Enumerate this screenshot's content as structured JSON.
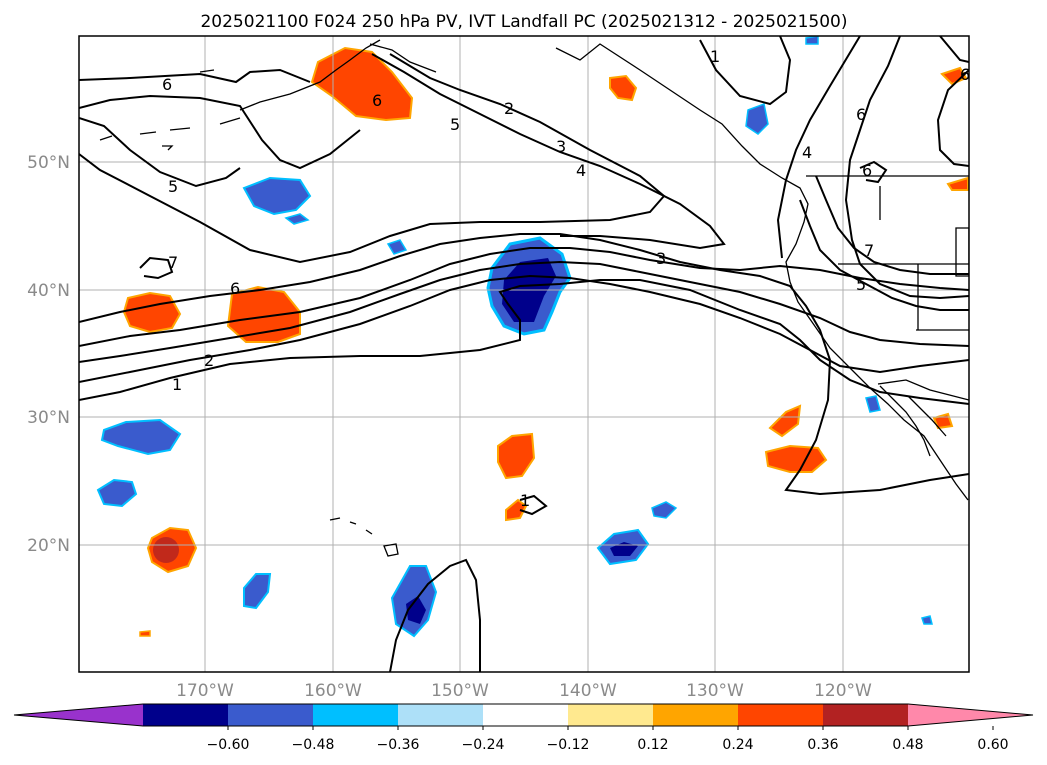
{
  "title": "2025021100 F024 250 hPa PV, IVT Landfall PC (2025021312 - 2025021500)",
  "lat_labels": [
    "50°N",
    "40°N",
    "30°N",
    "20°N"
  ],
  "lon_labels": [
    "170°W",
    "160°W",
    "150°W",
    "140°W",
    "130°W",
    "120°W"
  ],
  "contour_labels": [
    "6",
    "6",
    "5",
    "2",
    "3",
    "4",
    "5",
    "6",
    "7",
    "6",
    "3",
    "2",
    "1",
    "1",
    "1",
    "4",
    "6",
    "6",
    "7",
    "5"
  ],
  "colorbar": {
    "ticks": [
      "−0.60",
      "−0.48",
      "−0.36",
      "−0.24",
      "−0.12",
      "0.12",
      "0.24",
      "0.36",
      "0.48",
      "0.60"
    ],
    "colors": [
      "#9932CC",
      "#00008B",
      "#3A5BCD",
      "#00BFFF",
      "#ADE0F8",
      "#FFFFFF",
      "#FFE98F",
      "#FFA500",
      "#FF4500",
      "#B22222",
      "#FF88AA"
    ]
  },
  "fill_colors": {
    "pos_light": "#FFE98F",
    "pos_mid": "#FFA500",
    "pos": "#FF4500",
    "pos_strong": "#B22222",
    "neg_light": "#ADE0F8",
    "neg_mid": "#00BFFF",
    "neg": "#3A5BCD",
    "neg_strong": "#00008B"
  }
}
